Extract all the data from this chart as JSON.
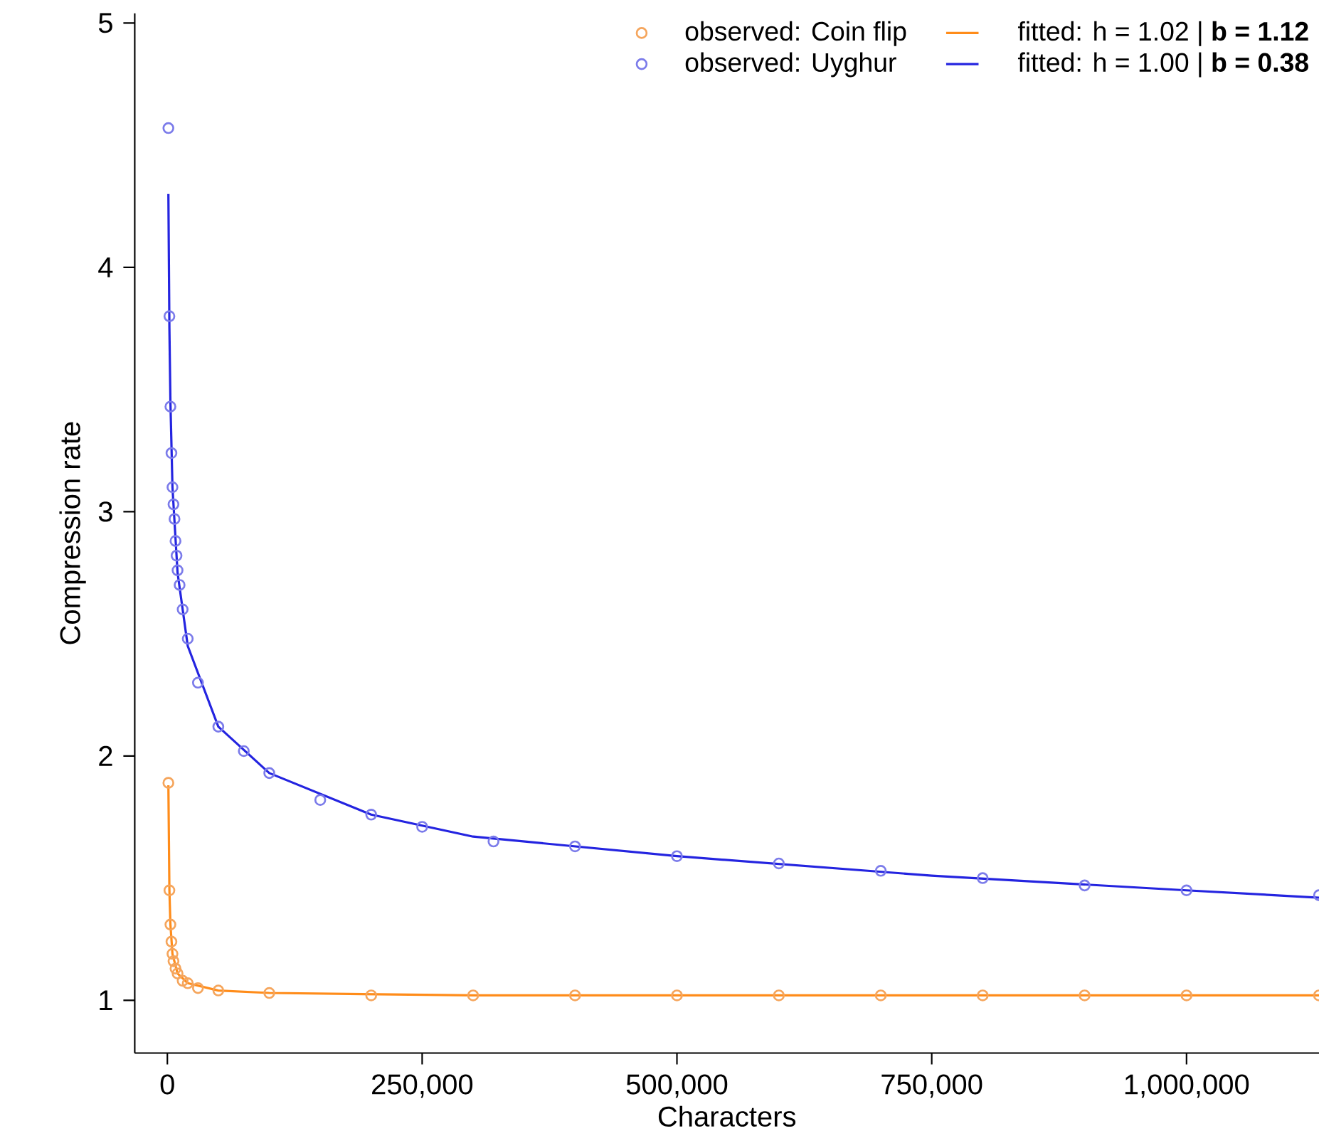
{
  "chart_data": {
    "type": "scatter",
    "xlabel": "Characters",
    "ylabel": "Compression rate",
    "xlim": [
      -32000,
      1130000
    ],
    "ylim": [
      0.784,
      5.04
    ],
    "xticks": [
      0,
      {
        "value": 250000,
        "label": "250,000"
      },
      {
        "value": 500000,
        "label": "500,000"
      },
      {
        "value": 750000,
        "label": "750,000"
      },
      {
        "value": 1000000,
        "label": "1,000,000"
      }
    ],
    "yticks": [
      1,
      2,
      3,
      4,
      5
    ],
    "legend": "top right",
    "grid": false,
    "series": [
      {
        "name": "observed: Coin flip",
        "marker": "circle",
        "color": "#f5a55c",
        "x": [
          1000,
          2000,
          3000,
          4000,
          5000,
          6000,
          8000,
          10000,
          15000,
          20000,
          30000,
          50000,
          100000,
          200000,
          300000,
          400000,
          500000,
          600000,
          700000,
          800000,
          900000,
          1000000,
          1130000
        ],
        "values": [
          1.89,
          1.45,
          1.31,
          1.24,
          1.19,
          1.16,
          1.13,
          1.11,
          1.08,
          1.07,
          1.05,
          1.04,
          1.03,
          1.02,
          1.02,
          1.02,
          1.02,
          1.02,
          1.02,
          1.02,
          1.02,
          1.02,
          1.02
        ]
      },
      {
        "name": "fitted: h = 1.02 | **b = 1.12**",
        "type": "line",
        "color": "#ff8c1a",
        "x": [
          1000,
          2000,
          3000,
          5000,
          10000,
          20000,
          50000,
          100000,
          300000,
          600000,
          1130000
        ],
        "values": [
          1.88,
          1.45,
          1.31,
          1.19,
          1.11,
          1.07,
          1.04,
          1.03,
          1.02,
          1.02,
          1.02
        ]
      },
      {
        "name": "observed: Uyghur",
        "marker": "circle",
        "color": "#7b7bea",
        "x": [
          1000,
          2000,
          3000,
          4000,
          5000,
          6000,
          7000,
          8000,
          9000,
          10000,
          12000,
          15000,
          20000,
          30000,
          50000,
          75000,
          100000,
          150000,
          200000,
          250000,
          320000,
          400000,
          500000,
          600000,
          700000,
          800000,
          900000,
          1000000,
          1130000
        ],
        "values": [
          4.57,
          3.8,
          3.43,
          3.24,
          3.1,
          3.03,
          2.97,
          2.88,
          2.82,
          2.76,
          2.7,
          2.6,
          2.48,
          2.3,
          2.12,
          2.02,
          1.93,
          1.82,
          1.76,
          1.71,
          1.65,
          1.63,
          1.59,
          1.56,
          1.53,
          1.5,
          1.47,
          1.45,
          1.43
        ]
      },
      {
        "name": "fitted: h = 1.00 | **b = 0.38**",
        "type": "line",
        "color": "#2424e0",
        "x": [
          1000,
          2000,
          3000,
          5000,
          10000,
          20000,
          50000,
          100000,
          200000,
          300000,
          500000,
          750000,
          1000000,
          1130000
        ],
        "values": [
          4.3,
          3.75,
          3.45,
          3.1,
          2.75,
          2.45,
          2.12,
          1.93,
          1.76,
          1.67,
          1.59,
          1.51,
          1.45,
          1.42
        ]
      }
    ]
  }
}
